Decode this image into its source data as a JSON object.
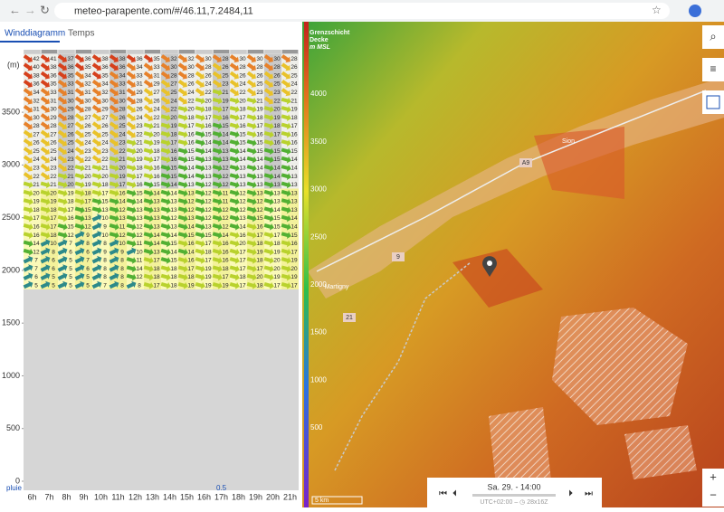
{
  "browser": {
    "url": "meteo-parapente.com/#/46.11,7.2484,11"
  },
  "tabs": [
    "Winddiagramm",
    "Temps"
  ],
  "wind": {
    "unit_label": "(m)",
    "ylim": [
      0,
      4050
    ],
    "yticks": [
      0,
      500,
      1000,
      1500,
      2000,
      2500,
      3000,
      3500
    ],
    "terrain_alt": 1820,
    "hours": [
      "6h",
      "7h",
      "8h",
      "9h",
      "10h",
      "11h",
      "12h",
      "13h",
      "14h",
      "15h",
      "16h",
      "17h",
      "18h",
      "19h",
      "20h",
      "21h"
    ],
    "rain_label": "pluie",
    "rain_values": [
      null,
      null,
      null,
      null,
      null,
      null,
      null,
      null,
      null,
      null,
      null,
      0.5,
      null,
      null,
      null,
      null
    ],
    "rows": [
      [
        42,
        41,
        37,
        36,
        38,
        38,
        36,
        35,
        32,
        32,
        30,
        28,
        30,
        30,
        30,
        28
      ],
      [
        40,
        38,
        36,
        35,
        36,
        36,
        34,
        33,
        30,
        30,
        28,
        26,
        28,
        28,
        28,
        26
      ],
      [
        38,
        36,
        35,
        34,
        35,
        34,
        33,
        31,
        28,
        28,
        26,
        25,
        26,
        26,
        26,
        25
      ],
      [
        36,
        35,
        33,
        32,
        34,
        33,
        31,
        29,
        27,
        26,
        24,
        23,
        24,
        25,
        25,
        24
      ],
      [
        34,
        33,
        31,
        31,
        32,
        31,
        29,
        27,
        25,
        24,
        22,
        21,
        22,
        23,
        23,
        22
      ],
      [
        32,
        31,
        30,
        30,
        30,
        30,
        28,
        26,
        24,
        22,
        20,
        19,
        20,
        21,
        22,
        21
      ],
      [
        31,
        30,
        29,
        28,
        29,
        28,
        26,
        24,
        22,
        20,
        18,
        17,
        18,
        19,
        20,
        19
      ],
      [
        30,
        29,
        28,
        27,
        27,
        26,
        24,
        22,
        20,
        18,
        17,
        16,
        17,
        18,
        19,
        18
      ],
      [
        28,
        28,
        27,
        26,
        26,
        25,
        23,
        21,
        19,
        17,
        16,
        15,
        16,
        17,
        18,
        17
      ],
      [
        27,
        27,
        26,
        25,
        25,
        24,
        22,
        20,
        18,
        16,
        15,
        14,
        15,
        16,
        17,
        16
      ],
      [
        26,
        26,
        25,
        24,
        24,
        23,
        21,
        19,
        17,
        16,
        14,
        14,
        15,
        15,
        16,
        16
      ],
      [
        25,
        25,
        24,
        23,
        23,
        22,
        20,
        18,
        16,
        15,
        14,
        13,
        14,
        15,
        15,
        15
      ],
      [
        24,
        24,
        23,
        22,
        22,
        21,
        19,
        17,
        16,
        15,
        13,
        13,
        14,
        14,
        15,
        14
      ],
      [
        23,
        23,
        22,
        21,
        21,
        20,
        18,
        16,
        15,
        14,
        13,
        12,
        13,
        14,
        14,
        14
      ],
      [
        22,
        22,
        21,
        20,
        20,
        19,
        17,
        16,
        15,
        14,
        13,
        12,
        13,
        13,
        14,
        13
      ],
      [
        21,
        21,
        20,
        19,
        18,
        17,
        16,
        15,
        14,
        13,
        12,
        12,
        13,
        13,
        13,
        13
      ],
      [
        20,
        20,
        19,
        18,
        17,
        16,
        15,
        14,
        14,
        13,
        12,
        11,
        12,
        13,
        13,
        13
      ],
      [
        19,
        19,
        18,
        17,
        15,
        14,
        14,
        13,
        13,
        12,
        12,
        11,
        12,
        12,
        13,
        13
      ],
      [
        18,
        18,
        17,
        15,
        13,
        12,
        13,
        13,
        13,
        12,
        12,
        12,
        12,
        12,
        14,
        13
      ],
      [
        17,
        17,
        16,
        13,
        10,
        13,
        13,
        13,
        12,
        13,
        12,
        12,
        13,
        15,
        15,
        14
      ],
      [
        16,
        17,
        15,
        12,
        9,
        11,
        12,
        13,
        13,
        14,
        13,
        12,
        14,
        16,
        15,
        14
      ],
      [
        16,
        18,
        12,
        9,
        10,
        12,
        12,
        14,
        14,
        15,
        15,
        14,
        16,
        17,
        17,
        15
      ],
      [
        14,
        10,
        7,
        8,
        8,
        10,
        11,
        14,
        15,
        16,
        17,
        16,
        20,
        18,
        18,
        16
      ],
      [
        12,
        8,
        6,
        6,
        9,
        9,
        10,
        13,
        14,
        14,
        18,
        16,
        17,
        19,
        19,
        17
      ],
      [
        7,
        6,
        5,
        7,
        8,
        8,
        11,
        17,
        15,
        16,
        17,
        16,
        17,
        18,
        20,
        19
      ],
      [
        7,
        6,
        5,
        6,
        8,
        8,
        14,
        18,
        18,
        17,
        19,
        18,
        17,
        17,
        20,
        20
      ],
      [
        6,
        5,
        5,
        5,
        8,
        8,
        12,
        18,
        18,
        18,
        19,
        17,
        18,
        20,
        19,
        19
      ],
      [
        5,
        5,
        5,
        5,
        7,
        8,
        8,
        17,
        18,
        19,
        19,
        19,
        17,
        18,
        17,
        17
      ]
    ]
  },
  "map": {
    "legend_title": [
      "Grenzschicht",
      "Decke",
      "m MSL"
    ],
    "legend_ticks": [
      500,
      1000,
      1500,
      2000,
      2500,
      3000,
      3500,
      4000
    ],
    "places": [
      "Sion",
      "Martigny"
    ],
    "roads": [
      "A9",
      "9",
      "21"
    ],
    "scale": "5 km",
    "time": "Sa. 29. - 14:00",
    "timezone": "UTC+02:00 – ◷ 28x16Z"
  }
}
